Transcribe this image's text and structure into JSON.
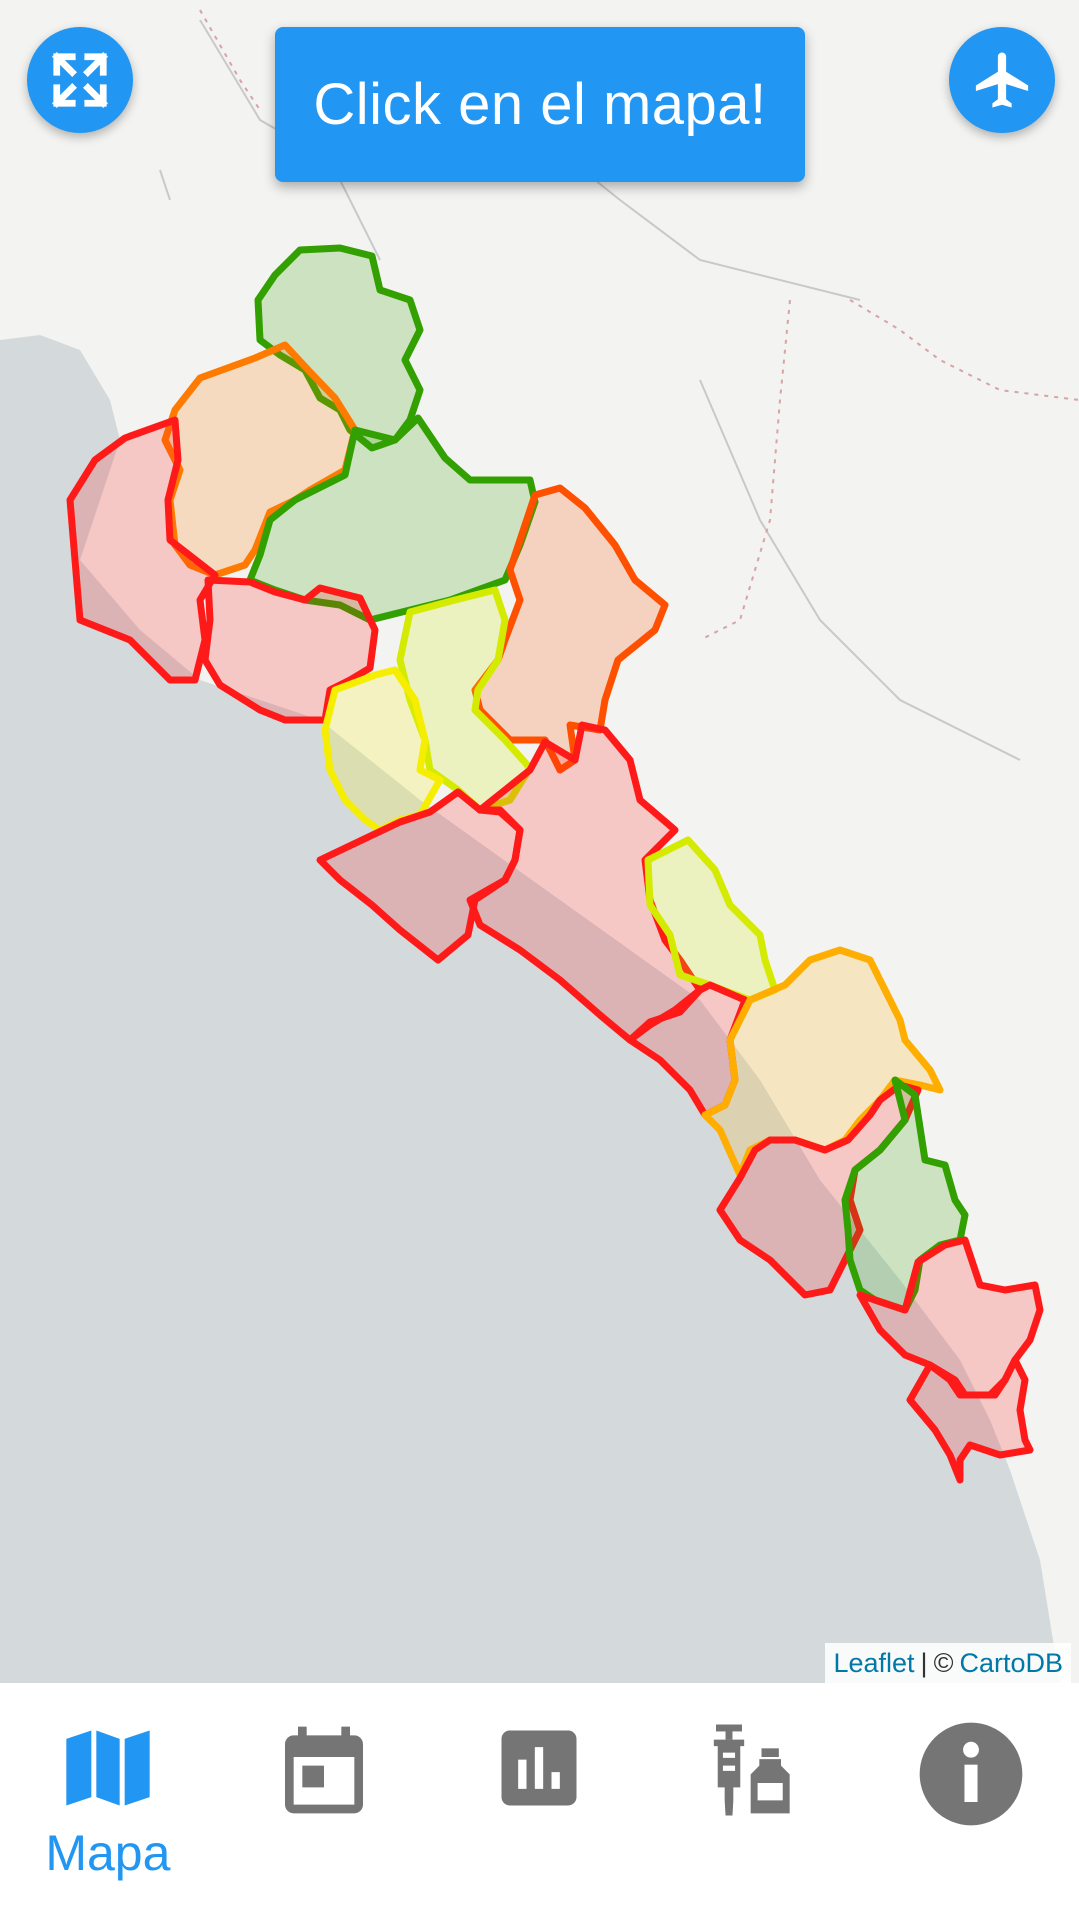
{
  "banner": {
    "text": "Click en el mapa!"
  },
  "fab": {
    "fullscreen_icon": "fullscreen-icon",
    "flights_icon": "airplane-icon"
  },
  "attribution": {
    "leaflet": "Leaflet",
    "separator": "|",
    "copyright": "©",
    "cartodb": "CartoDB"
  },
  "nav": {
    "items": [
      {
        "label": "Mapa",
        "icon": "map-icon",
        "active": true
      },
      {
        "label": "",
        "icon": "calendar-icon",
        "active": false
      },
      {
        "label": "",
        "icon": "bar-chart-icon",
        "active": false
      },
      {
        "label": "",
        "icon": "vaccine-icon",
        "active": false
      },
      {
        "label": "",
        "icon": "info-icon",
        "active": false
      }
    ]
  },
  "colors": {
    "accent": "#2196f3",
    "inactive_icon": "#757575",
    "sea": "#d4dadc",
    "land": "#f3f3f1",
    "red": "#ff1a1a",
    "orange_red": "#ff5000",
    "orange": "#ff7a00",
    "amber": "#ffae00",
    "yellow": "#f5ee00",
    "yellow_green": "#d4ea00",
    "green": "#32a000"
  }
}
